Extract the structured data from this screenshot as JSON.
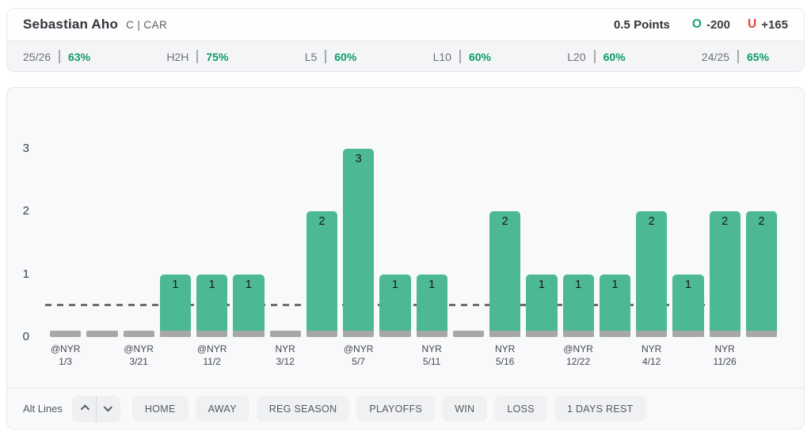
{
  "header": {
    "player_name": "Sebastian Aho",
    "position_team": "C | CAR",
    "prop_line": "0.5 Points",
    "over": {
      "label": "O",
      "odds": "-200"
    },
    "under": {
      "label": "U",
      "odds": "+165"
    }
  },
  "stats": [
    {
      "label": "25/26",
      "value": "63%"
    },
    {
      "label": "H2H",
      "value": "75%"
    },
    {
      "label": "L5",
      "value": "60%"
    },
    {
      "label": "L10",
      "value": "60%"
    },
    {
      "label": "L20",
      "value": "60%"
    },
    {
      "label": "24/25",
      "value": "65%"
    }
  ],
  "chart_data": {
    "type": "bar",
    "title": "",
    "xlabel": "",
    "ylabel": "",
    "yticks": [
      0,
      1,
      2,
      3
    ],
    "ylim": [
      0,
      3.6
    ],
    "prop_line_value": 0.5,
    "legend": "none",
    "grid": false,
    "colors": {
      "bar_green": "#4cb992",
      "bar_zero_gray": "#a6a7a9",
      "dashed_line": "#6d6d6d",
      "stat_green": "#0b9c66",
      "over_green": "#1ba672",
      "under_red": "#e8403d"
    },
    "games": [
      {
        "opponent": "@NYR",
        "date": "1/3",
        "value": 0
      },
      {
        "opponent": "",
        "date": "",
        "value": 0
      },
      {
        "opponent": "@NYR",
        "date": "3/21",
        "value": 0
      },
      {
        "opponent": "",
        "date": "",
        "value": 1
      },
      {
        "opponent": "@NYR",
        "date": "11/2",
        "value": 1
      },
      {
        "opponent": "",
        "date": "",
        "value": 1
      },
      {
        "opponent": "NYR",
        "date": "3/12",
        "value": 0
      },
      {
        "opponent": "",
        "date": "",
        "value": 2
      },
      {
        "opponent": "@NYR",
        "date": "5/7",
        "value": 3
      },
      {
        "opponent": "",
        "date": "",
        "value": 1
      },
      {
        "opponent": "NYR",
        "date": "5/11",
        "value": 1
      },
      {
        "opponent": "",
        "date": "",
        "value": 0
      },
      {
        "opponent": "NYR",
        "date": "5/16",
        "value": 2
      },
      {
        "opponent": "",
        "date": "",
        "value": 1
      },
      {
        "opponent": "@NYR",
        "date": "12/22",
        "value": 1
      },
      {
        "opponent": "",
        "date": "",
        "value": 1
      },
      {
        "opponent": "NYR",
        "date": "4/12",
        "value": 2
      },
      {
        "opponent": "",
        "date": "",
        "value": 1
      },
      {
        "opponent": "NYR",
        "date": "11/26",
        "value": 2
      },
      {
        "opponent": "",
        "date": "",
        "value": 2
      }
    ]
  },
  "filters": {
    "alt_lines_label": "Alt Lines",
    "chevrons": [
      "chevron-up-icon",
      "chevron-down-icon"
    ],
    "buttons": [
      "HOME",
      "AWAY",
      "REG SEASON",
      "PLAYOFFS",
      "WIN",
      "LOSS",
      "1 DAYS REST"
    ]
  }
}
